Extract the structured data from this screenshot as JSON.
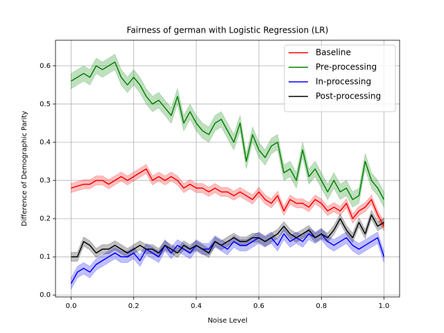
{
  "chart_data": {
    "type": "line",
    "title": "Fairness of german with Logistic Regression (LR)",
    "xlabel": "Noise Level",
    "ylabel": "Difference of Demographic Parity",
    "x": [
      0,
      0.02,
      0.04,
      0.06,
      0.08,
      0.1,
      0.12,
      0.14,
      0.16,
      0.18,
      0.2,
      0.22,
      0.24,
      0.26,
      0.28,
      0.3,
      0.32,
      0.34,
      0.36,
      0.38,
      0.4,
      0.42,
      0.44,
      0.46,
      0.48,
      0.5,
      0.52,
      0.54,
      0.56,
      0.58,
      0.6,
      0.62,
      0.64,
      0.66,
      0.68,
      0.7,
      0.72,
      0.74,
      0.76,
      0.78,
      0.8,
      0.82,
      0.84,
      0.86,
      0.88,
      0.9,
      0.92,
      0.94,
      0.96,
      0.98,
      1.0
    ],
    "series": [
      {
        "name": "Baseline",
        "color": "#ff0000",
        "band": 0.012,
        "values": [
          0.28,
          0.285,
          0.29,
          0.29,
          0.3,
          0.3,
          0.29,
          0.3,
          0.31,
          0.3,
          0.31,
          0.32,
          0.33,
          0.3,
          0.31,
          0.3,
          0.31,
          0.3,
          0.28,
          0.29,
          0.28,
          0.28,
          0.27,
          0.28,
          0.27,
          0.27,
          0.26,
          0.27,
          0.26,
          0.25,
          0.27,
          0.25,
          0.24,
          0.26,
          0.22,
          0.25,
          0.24,
          0.24,
          0.23,
          0.25,
          0.24,
          0.22,
          0.23,
          0.22,
          0.24,
          0.2,
          0.22,
          0.23,
          0.25,
          0.21,
          0.18
        ]
      },
      {
        "name": "Pre-processing",
        "color": "#008000",
        "band": 0.02,
        "values": [
          0.56,
          0.57,
          0.58,
          0.57,
          0.6,
          0.59,
          0.6,
          0.61,
          0.57,
          0.55,
          0.57,
          0.55,
          0.52,
          0.5,
          0.51,
          0.49,
          0.47,
          0.52,
          0.45,
          0.48,
          0.45,
          0.43,
          0.42,
          0.45,
          0.46,
          0.43,
          0.4,
          0.45,
          0.35,
          0.42,
          0.38,
          0.36,
          0.39,
          0.4,
          0.32,
          0.33,
          0.3,
          0.38,
          0.31,
          0.33,
          0.3,
          0.27,
          0.3,
          0.27,
          0.28,
          0.25,
          0.26,
          0.35,
          0.3,
          0.28,
          0.25
        ]
      },
      {
        "name": "In-processing",
        "color": "#0000ff",
        "band": 0.015,
        "values": [
          0.03,
          0.06,
          0.07,
          0.06,
          0.08,
          0.09,
          0.1,
          0.11,
          0.1,
          0.1,
          0.11,
          0.09,
          0.12,
          0.11,
          0.1,
          0.13,
          0.11,
          0.13,
          0.12,
          0.11,
          0.13,
          0.12,
          0.12,
          0.14,
          0.13,
          0.12,
          0.14,
          0.13,
          0.13,
          0.14,
          0.15,
          0.14,
          0.15,
          0.13,
          0.16,
          0.14,
          0.15,
          0.14,
          0.16,
          0.15,
          0.16,
          0.14,
          0.13,
          0.14,
          0.15,
          0.13,
          0.12,
          0.13,
          0.14,
          0.15,
          0.1
        ]
      },
      {
        "name": "Post-processing",
        "color": "#000000",
        "band": 0.012,
        "values": [
          0.1,
          0.1,
          0.14,
          0.13,
          0.11,
          0.12,
          0.12,
          0.13,
          0.12,
          0.11,
          0.12,
          0.13,
          0.12,
          0.12,
          0.11,
          0.13,
          0.12,
          0.11,
          0.13,
          0.12,
          0.13,
          0.12,
          0.11,
          0.14,
          0.13,
          0.14,
          0.15,
          0.14,
          0.14,
          0.15,
          0.15,
          0.14,
          0.15,
          0.16,
          0.18,
          0.16,
          0.15,
          0.16,
          0.17,
          0.15,
          0.16,
          0.15,
          0.17,
          0.2,
          0.17,
          0.15,
          0.19,
          0.16,
          0.21,
          0.18,
          0.19
        ]
      }
    ],
    "xlim": [
      -0.05,
      1.05
    ],
    "ylim": [
      -0.005,
      0.667
    ],
    "xticks": [
      {
        "value": 0,
        "label": "0.0"
      },
      {
        "value": 0.2,
        "label": "0.2"
      },
      {
        "value": 0.4,
        "label": "0.4"
      },
      {
        "value": 0.6,
        "label": "0.6"
      },
      {
        "value": 0.8,
        "label": "0.8"
      },
      {
        "value": 1.0,
        "label": "1.0"
      }
    ],
    "yticks": [
      {
        "value": 0,
        "label": "0.0"
      },
      {
        "value": 0.1,
        "label": "0.1"
      },
      {
        "value": 0.2,
        "label": "0.2"
      },
      {
        "value": 0.3,
        "label": "0.3"
      },
      {
        "value": 0.4,
        "label": "0.4"
      },
      {
        "value": 0.5,
        "label": "0.5"
      },
      {
        "value": 0.6,
        "label": "0.6"
      }
    ],
    "grid": true,
    "legend": "upper right"
  }
}
